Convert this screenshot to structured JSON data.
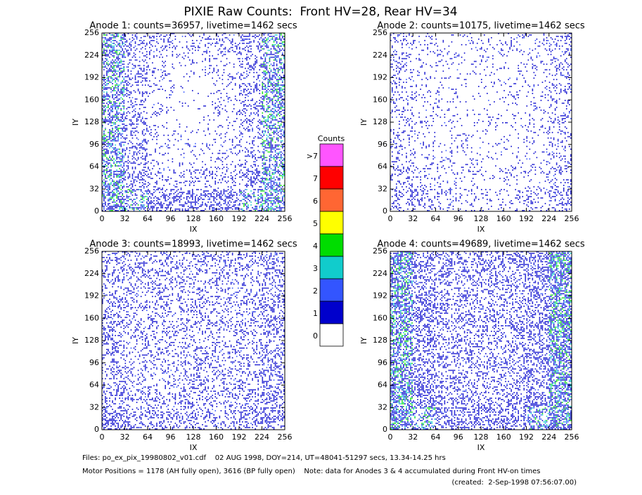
{
  "title": "PIXIE Raw Counts:  Front HV=28, Rear HV=34",
  "chart_data": [
    {
      "type": "heatmap",
      "title": "Anode 1: counts=36957, livetime=1462 secs",
      "xlabel": "IX",
      "ylabel": "IY",
      "xlim": [
        0,
        256
      ],
      "ylim": [
        0,
        256
      ],
      "xticks": [
        0,
        32,
        64,
        96,
        128,
        160,
        192,
        224,
        256
      ],
      "yticks": [
        0,
        32,
        64,
        96,
        128,
        160,
        192,
        224,
        256
      ],
      "density": [
        [
          0.5,
          0.3,
          0.2,
          0.15,
          0.15,
          0.2,
          0.3,
          0.5
        ],
        [
          0.5,
          0.25,
          0.12,
          0.08,
          0.08,
          0.12,
          0.25,
          0.5
        ],
        [
          0.5,
          0.25,
          0.1,
          0.05,
          0.05,
          0.1,
          0.25,
          0.5
        ],
        [
          0.5,
          0.25,
          0.1,
          0.05,
          0.05,
          0.1,
          0.25,
          0.5
        ],
        [
          0.5,
          0.25,
          0.1,
          0.06,
          0.06,
          0.1,
          0.25,
          0.5
        ],
        [
          0.5,
          0.25,
          0.12,
          0.08,
          0.08,
          0.12,
          0.25,
          0.5
        ],
        [
          0.5,
          0.3,
          0.2,
          0.15,
          0.15,
          0.2,
          0.3,
          0.5
        ],
        [
          0.6,
          0.45,
          0.4,
          0.35,
          0.35,
          0.4,
          0.45,
          0.6
        ]
      ]
    },
    {
      "type": "heatmap",
      "title": "Anode 2: counts=10175, livetime=1462 secs",
      "xlabel": "IX",
      "ylabel": "IY",
      "xlim": [
        0,
        256
      ],
      "ylim": [
        0,
        256
      ],
      "xticks": [
        0,
        32,
        64,
        96,
        128,
        160,
        192,
        224,
        256
      ],
      "yticks": [
        0,
        32,
        64,
        96,
        128,
        160,
        192,
        224,
        256
      ],
      "density": [
        [
          0.2,
          0.12,
          0.1,
          0.08,
          0.08,
          0.1,
          0.12,
          0.25
        ],
        [
          0.18,
          0.1,
          0.07,
          0.06,
          0.06,
          0.07,
          0.1,
          0.2
        ],
        [
          0.18,
          0.1,
          0.07,
          0.05,
          0.05,
          0.07,
          0.1,
          0.18
        ],
        [
          0.18,
          0.1,
          0.07,
          0.05,
          0.05,
          0.07,
          0.1,
          0.18
        ],
        [
          0.18,
          0.1,
          0.07,
          0.05,
          0.05,
          0.07,
          0.1,
          0.18
        ],
        [
          0.18,
          0.1,
          0.07,
          0.06,
          0.06,
          0.07,
          0.1,
          0.18
        ],
        [
          0.2,
          0.12,
          0.1,
          0.08,
          0.08,
          0.1,
          0.12,
          0.2
        ],
        [
          0.25,
          0.18,
          0.15,
          0.12,
          0.12,
          0.15,
          0.18,
          0.25
        ]
      ]
    },
    {
      "type": "heatmap",
      "title": "Anode 3: counts=18993, livetime=1462 secs",
      "xlabel": "IX",
      "ylabel": "IY",
      "xlim": [
        0,
        256
      ],
      "ylim": [
        0,
        256
      ],
      "xticks": [
        0,
        32,
        64,
        96,
        128,
        160,
        192,
        224,
        256
      ],
      "yticks": [
        0,
        32,
        64,
        96,
        128,
        160,
        192,
        224,
        256
      ],
      "density": [
        [
          0.3,
          0.25,
          0.22,
          0.22,
          0.22,
          0.22,
          0.25,
          0.35
        ],
        [
          0.28,
          0.22,
          0.2,
          0.2,
          0.2,
          0.2,
          0.22,
          0.3
        ],
        [
          0.28,
          0.22,
          0.2,
          0.2,
          0.2,
          0.2,
          0.22,
          0.3
        ],
        [
          0.28,
          0.22,
          0.2,
          0.2,
          0.2,
          0.2,
          0.22,
          0.3
        ],
        [
          0.28,
          0.22,
          0.2,
          0.2,
          0.2,
          0.2,
          0.22,
          0.3
        ],
        [
          0.28,
          0.22,
          0.2,
          0.2,
          0.2,
          0.2,
          0.22,
          0.3
        ],
        [
          0.3,
          0.25,
          0.22,
          0.22,
          0.22,
          0.22,
          0.25,
          0.32
        ],
        [
          0.35,
          0.28,
          0.25,
          0.25,
          0.25,
          0.25,
          0.28,
          0.35
        ]
      ]
    },
    {
      "type": "heatmap",
      "title": "Anode 4: counts=49689, livetime=1462 secs",
      "xlabel": "IX",
      "ylabel": "IY",
      "xlim": [
        0,
        256
      ],
      "ylim": [
        0,
        256
      ],
      "xticks": [
        0,
        32,
        64,
        96,
        128,
        160,
        192,
        224,
        256
      ],
      "yticks": [
        0,
        32,
        64,
        96,
        128,
        160,
        192,
        224,
        256
      ],
      "density": [
        [
          0.65,
          0.4,
          0.3,
          0.3,
          0.3,
          0.3,
          0.4,
          0.7
        ],
        [
          0.6,
          0.35,
          0.28,
          0.25,
          0.25,
          0.28,
          0.35,
          0.65
        ],
        [
          0.6,
          0.35,
          0.28,
          0.25,
          0.25,
          0.28,
          0.35,
          0.65
        ],
        [
          0.6,
          0.35,
          0.28,
          0.25,
          0.25,
          0.28,
          0.35,
          0.65
        ],
        [
          0.6,
          0.35,
          0.28,
          0.25,
          0.25,
          0.28,
          0.35,
          0.65
        ],
        [
          0.6,
          0.35,
          0.28,
          0.25,
          0.25,
          0.28,
          0.35,
          0.65
        ],
        [
          0.6,
          0.38,
          0.3,
          0.28,
          0.28,
          0.3,
          0.38,
          0.65
        ],
        [
          0.65,
          0.45,
          0.38,
          0.35,
          0.35,
          0.38,
          0.45,
          0.7
        ]
      ]
    }
  ],
  "colorbar": {
    "title": "Counts",
    "labels": [
      "0",
      "1",
      "2",
      "3",
      "4",
      "5",
      "6",
      "7",
      ">7"
    ],
    "colors": [
      "#ffffff",
      "#0000cc",
      "#3355ff",
      "#11cccc",
      "#00dd00",
      "#ffff00",
      "#ff6633",
      "#ff0000",
      "#ff55ff"
    ]
  },
  "notes": [
    "Files: po_ex_pix_19980802_v01.cdf    02 AUG 1998, DOY=214, UT=48041-51297 secs, 13.34-14.25 hrs",
    "Motor Positions = 1178 (AH fully open), 3616 (BP fully open)    Note: data for Anodes 3 & 4 accumulated during Front HV-on times",
    "(created:  2-Sep-1998 07:56:07.00)"
  ]
}
